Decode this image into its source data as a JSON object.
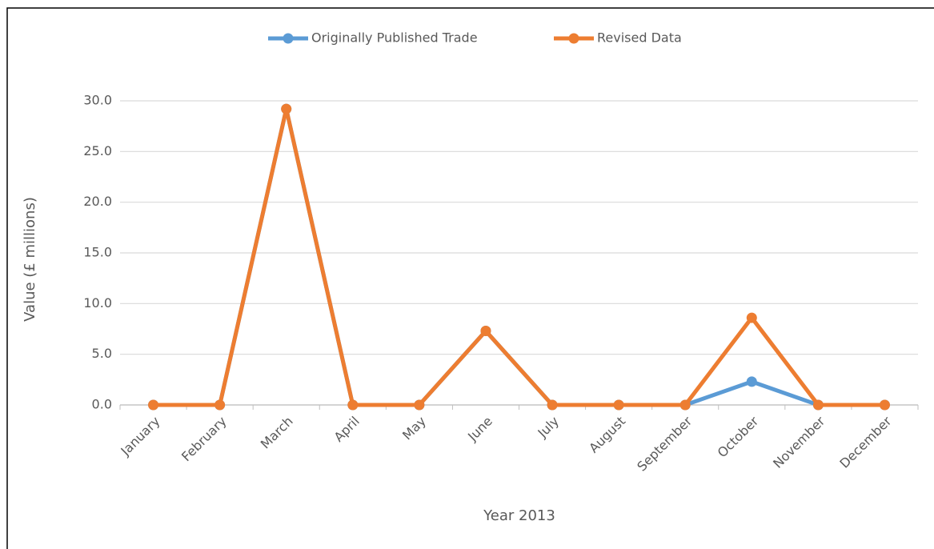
{
  "chart_data": {
    "type": "line",
    "categories": [
      "January",
      "February",
      "March",
      "April",
      "May",
      "June",
      "July",
      "August",
      "September",
      "October",
      "November",
      "December"
    ],
    "series": [
      {
        "name": "Originally Published Trade",
        "color": "#5b9bd5",
        "values": [
          0,
          0,
          29.2,
          0,
          0,
          7.3,
          0,
          0,
          0,
          2.3,
          0,
          0
        ]
      },
      {
        "name": "Revised Data",
        "color": "#ed7d31",
        "values": [
          0,
          0,
          29.2,
          0,
          0,
          7.3,
          0,
          0,
          0,
          8.6,
          0,
          0
        ]
      }
    ],
    "ylim": [
      0,
      30
    ],
    "yticks": [
      {
        "value": 0,
        "label": "0.0"
      },
      {
        "value": 5,
        "label": "5.0"
      },
      {
        "value": 10,
        "label": "10.0"
      },
      {
        "value": 15,
        "label": "15.0"
      },
      {
        "value": 20,
        "label": "20.0"
      },
      {
        "value": 25,
        "label": "25.0"
      },
      {
        "value": 30,
        "label": "30.0"
      }
    ],
    "y_label": "Value (£ millions)",
    "x_label": "Year 2013",
    "grid": true,
    "legend": "top"
  }
}
